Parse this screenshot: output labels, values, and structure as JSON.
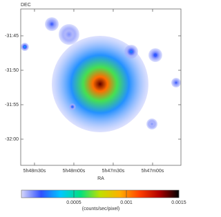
{
  "chart_data": {
    "type": "image",
    "xlabel": "RA",
    "ylabel": "DEC",
    "x": [
      20860,
      20896.8,
      20836.3,
      20817.9,
      20917.4,
      20802.1,
      20883.7,
      20820.5,
      20881.1
    ],
    "y": [
      -1912,
      -1903.3,
      -1907.3,
      -1907.8,
      -1906.6,
      -1911.8,
      -1904.8,
      -1917.8,
      -1915.3
    ],
    "values": [
      0.0014,
      0.0002,
      0.0003,
      0.00025,
      0.0004,
      0.0002,
      0.0001,
      0.0001,
      0.0003
    ],
    "sizes": [
      7,
      1,
      1,
      1,
      0.6,
      0.7,
      1.5,
      0.8,
      0.5
    ],
    "xlim": [
      20920.5,
      20798.4
    ],
    "ylim": [
      -1923.8,
      -1901.1
    ],
    "xticks": [
      {
        "value": 20910,
        "label": "5h48m30s"
      },
      {
        "value": 20880,
        "label": "5h48m00s"
      },
      {
        "value": 20850,
        "label": "5h47m30s"
      },
      {
        "value": 20820,
        "label": "5h47m00s"
      }
    ],
    "yticks": [
      {
        "value": -1905,
        "label": "-31:45"
      },
      {
        "value": -1910,
        "label": "-31:50"
      },
      {
        "value": -1915,
        "label": "-31:55"
      },
      {
        "value": -1920,
        "label": "-32:00"
      }
    ],
    "colorbar": {
      "label": "(counts/sec/pixel)",
      "clim": [
        0,
        0.0015
      ],
      "ticks": [
        0.0005,
        0.001,
        0.0015
      ],
      "colormap": [
        "#d8d8fa",
        "#3050ff",
        "#00c8ff",
        "#00e080",
        "#c0e000",
        "#ffb000",
        "#ff4000",
        "#b00000",
        "#000000"
      ]
    }
  }
}
